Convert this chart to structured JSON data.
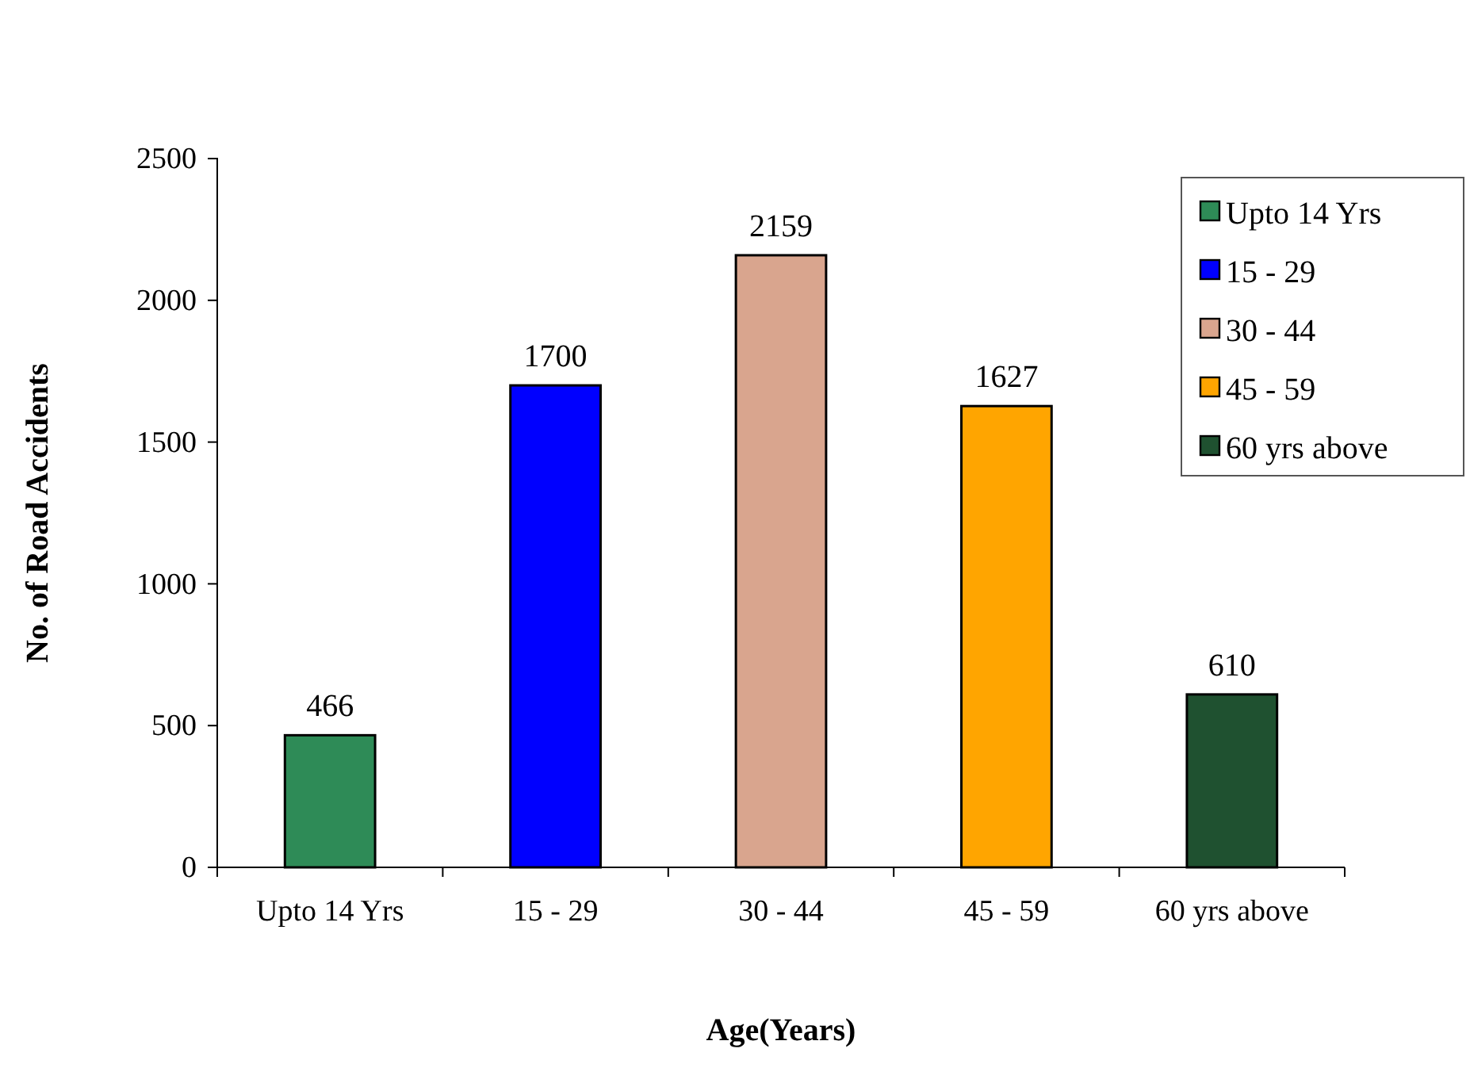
{
  "chart_data": {
    "type": "bar",
    "xlabel": "Age(Years)",
    "ylabel": "No. of Road Accidents",
    "categories": [
      "Upto 14 Yrs",
      "15 - 29",
      "30 - 44",
      "45 - 59",
      "60 yrs above"
    ],
    "series": [
      {
        "name": "Upto 14 Yrs",
        "color": "#2e8b57",
        "values": [
          466,
          null,
          null,
          null,
          null
        ]
      },
      {
        "name": "15 - 29",
        "color": "#0000ff",
        "values": [
          null,
          1700,
          null,
          null,
          null
        ]
      },
      {
        "name": "30 - 44",
        "color": "#d9a58e",
        "values": [
          null,
          null,
          2159,
          null,
          null
        ]
      },
      {
        "name": "45 - 59",
        "color": "#ffa500",
        "values": [
          null,
          null,
          null,
          1627,
          null
        ]
      },
      {
        "name": "60 yrs above",
        "color": "#1f5130",
        "values": [
          null,
          null,
          null,
          null,
          610
        ]
      }
    ],
    "ylim": [
      0,
      2500
    ],
    "yticks": [
      0,
      500,
      1000,
      1500,
      2000,
      2500
    ],
    "data_labels": true,
    "legend": "top right",
    "grid": false
  }
}
